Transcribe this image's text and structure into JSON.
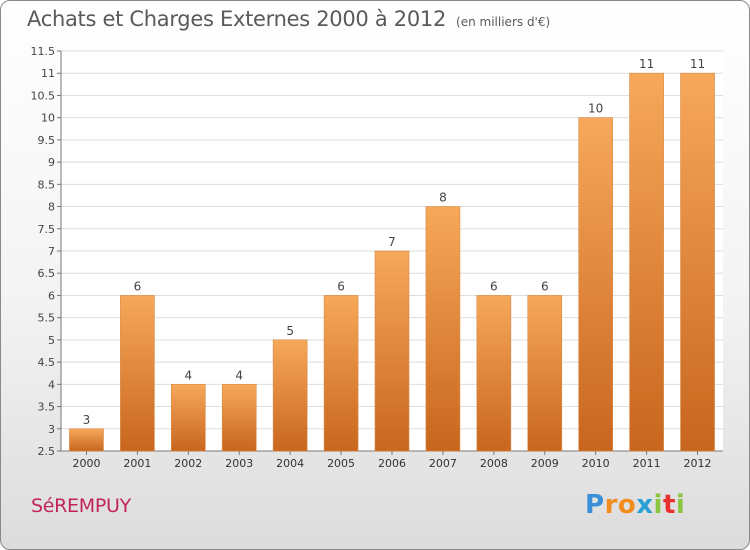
{
  "title": "Achats et Charges Externes 2000 à 2012",
  "subtitle": "(en milliers d'€)",
  "commune": "SéREMPUY",
  "logo": {
    "text": "Proxiti",
    "letters": [
      "P",
      "r",
      "o",
      "x",
      "i",
      "t",
      "i"
    ],
    "colors": [
      "#3a8fd8",
      "#f28c1e",
      "#f28c1e",
      "#2a9fd6",
      "#8cc63f",
      "#e8312f",
      "#8cc63f"
    ]
  },
  "colors": {
    "bar_top": "#f7a85a",
    "bar_bottom": "#c8661e",
    "title": "#5a5a5a",
    "commune": "#c2245a"
  },
  "chart_data": {
    "type": "bar",
    "title": "Achats et Charges Externes 2000 à 2012",
    "xlabel": "",
    "ylabel": "",
    "categories": [
      "2000",
      "2001",
      "2002",
      "2003",
      "2004",
      "2005",
      "2006",
      "2007",
      "2008",
      "2009",
      "2010",
      "2011",
      "2012"
    ],
    "values": [
      3,
      6,
      4,
      4,
      5,
      6,
      7,
      8,
      6,
      6,
      10,
      11,
      11
    ],
    "ylim": [
      2.5,
      11.5
    ],
    "yticks": [
      2.5,
      3,
      3.5,
      4,
      4.5,
      5,
      5.5,
      6,
      6.5,
      7,
      7.5,
      8,
      8.5,
      9,
      9.5,
      10,
      10.5,
      11,
      11.5
    ],
    "ytick_labels": [
      "2.5",
      "3",
      "3.5",
      "4",
      "4.5",
      "5",
      "5.5",
      "6",
      "6.5",
      "7",
      "7.5",
      "8",
      "8.5",
      "9",
      "9.5",
      "10",
      "10.5",
      "11",
      "11.5"
    ],
    "grid": true
  }
}
